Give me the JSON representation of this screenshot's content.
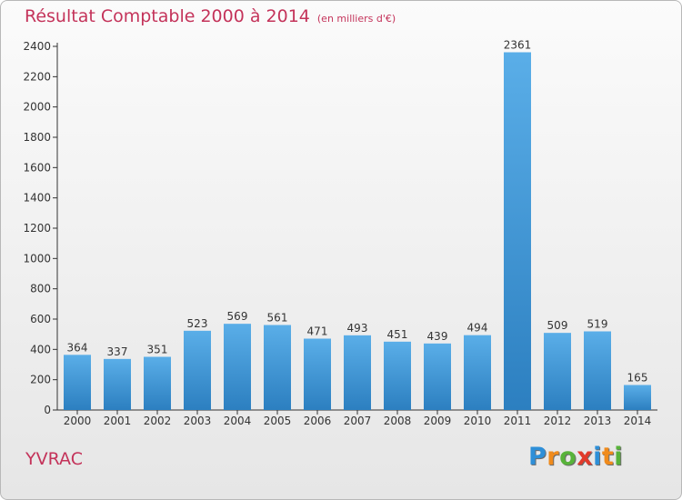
{
  "chart_data": {
    "type": "bar",
    "title": "Résultat Comptable 2000 à 2014",
    "subtitle": "(en milliers d'€)",
    "categories": [
      "2000",
      "2001",
      "2002",
      "2003",
      "2004",
      "2005",
      "2006",
      "2007",
      "2008",
      "2009",
      "2010",
      "2011",
      "2012",
      "2013",
      "2014"
    ],
    "values": [
      364,
      337,
      351,
      523,
      569,
      561,
      471,
      493,
      451,
      439,
      494,
      2361,
      509,
      519,
      165
    ],
    "yticks": [
      "0",
      "200",
      "400",
      "600",
      "800",
      "1000",
      "1200",
      "1400",
      "1600",
      "1800",
      "2000",
      "2200",
      "2400"
    ],
    "ylim": [
      0,
      2400
    ],
    "xlabel": "",
    "ylabel": "",
    "grid": false,
    "bar_color": "#4a9fe0"
  },
  "footer": {
    "commune": "YVRAC",
    "logo_letters": [
      "P",
      "r",
      "o",
      "x",
      "i",
      "t",
      "i"
    ],
    "logo_colors": [
      "#2e8fd8",
      "#f08b1c",
      "#58b33a",
      "#e23a2b",
      "#2e8fd8",
      "#f08b1c",
      "#58b33a"
    ]
  }
}
